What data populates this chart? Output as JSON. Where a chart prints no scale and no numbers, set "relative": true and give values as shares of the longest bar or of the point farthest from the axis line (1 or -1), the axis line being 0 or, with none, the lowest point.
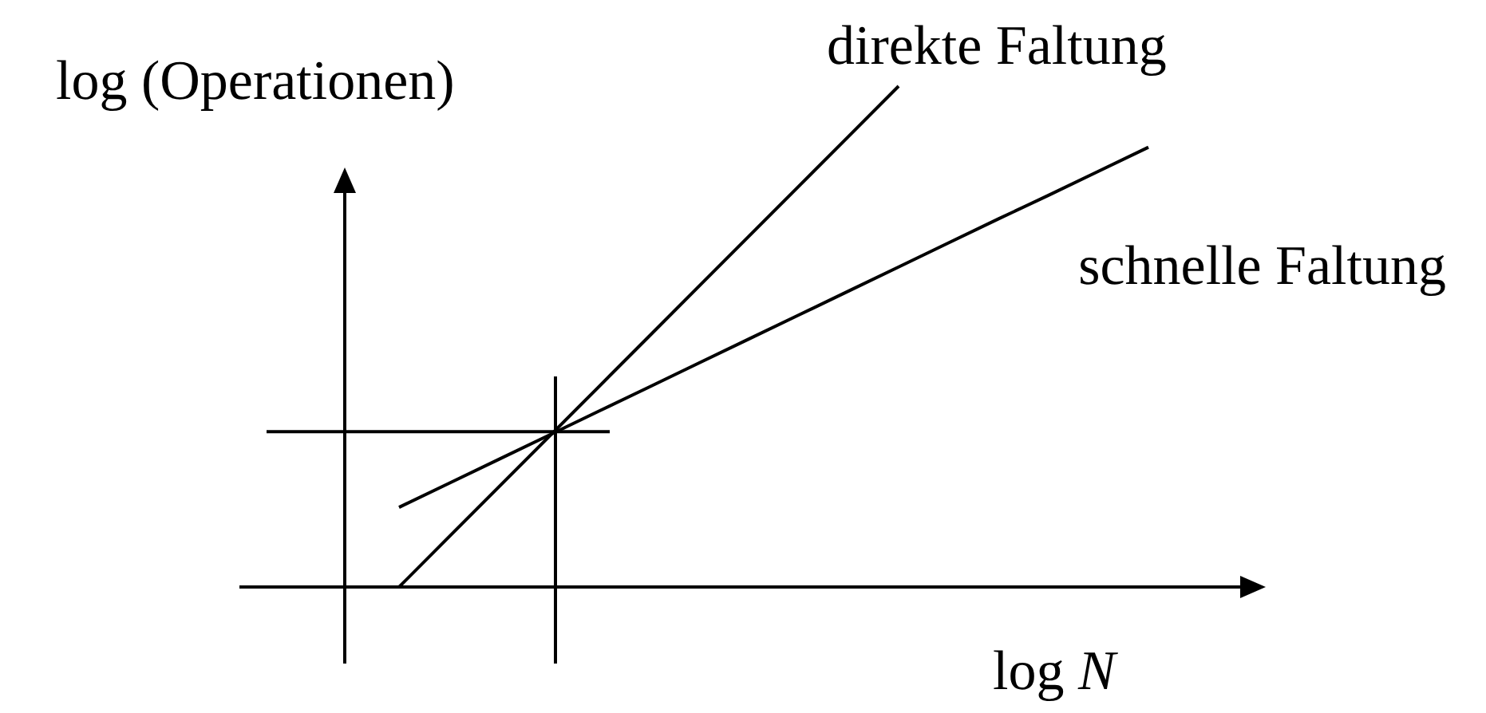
{
  "chart_data": {
    "type": "line",
    "relative": true,
    "xlabel": "log N",
    "ylabel": "log (Operationen)",
    "line_style": "solid",
    "categories": [
      null,
      null,
      null,
      null,
      null,
      null,
      null,
      null,
      null,
      null,
      null,
      null,
      null,
      null,
      null,
      null
    ],
    "series": [
      {
        "name": "direkte Faltung",
        "color": "#000000",
        "values": [
          0,
          0.1,
          0.2,
          0.3,
          0.4,
          0.5,
          0.6,
          0.7,
          0.8,
          0.9,
          1,
          null,
          null,
          null,
          null,
          null
        ]
      },
      {
        "name": "schnelle Faltung",
        "color": "#000000",
        "values": [
          0.159,
          0.207,
          0.255,
          0.303,
          0.351,
          0.399,
          0.447,
          0.495,
          0.543,
          0.591,
          0.639,
          0.687,
          0.735,
          0.782,
          0.83,
          0.878
        ]
      }
    ],
    "ref_lines": [
      {
        "axis": "y",
        "value": 0.31,
        "color": "#000000"
      }
    ]
  }
}
